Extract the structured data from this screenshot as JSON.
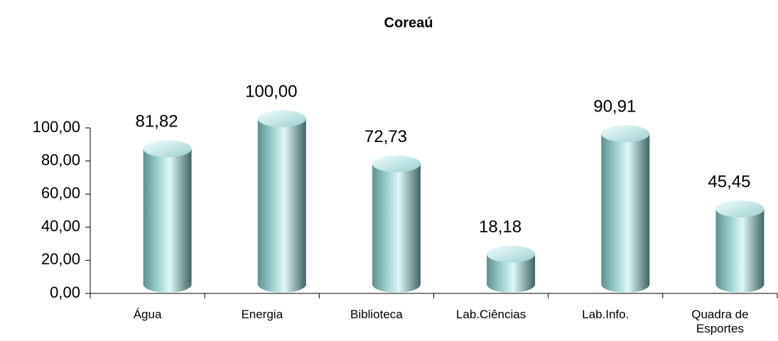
{
  "chart_data": {
    "type": "bar",
    "title": "Coreaú",
    "categories": [
      "Água",
      "Energia",
      "Biblioteca",
      "Lab.Ciências",
      "Lab.Info.",
      "Quadra de Esportes"
    ],
    "values": [
      81.82,
      100,
      72.73,
      18.18,
      90.91,
      45.45
    ],
    "value_labels": [
      "81,82",
      "100,00",
      "72,73",
      "18,18",
      "90,91",
      "45,45"
    ],
    "color": "#9ccfcf",
    "ylim": [
      0,
      100
    ],
    "yticks": [
      {
        "value": 0,
        "label": "0,00"
      },
      {
        "value": 20,
        "label": "20,00"
      },
      {
        "value": 40,
        "label": "40,00"
      },
      {
        "value": 60,
        "label": "60,00"
      },
      {
        "value": 80,
        "label": "80,00"
      },
      {
        "value": 100,
        "label": "100,00"
      }
    ],
    "grid": false
  }
}
